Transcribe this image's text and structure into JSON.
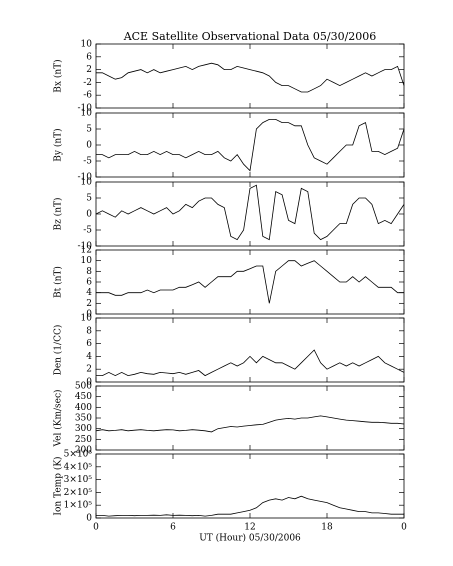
{
  "chart_data": [
    {
      "type": "line",
      "title": "ACE Satellite Observational Data   05/30/2006",
      "ylabel": "Bx (nT)",
      "color": "#000000",
      "x": [
        0,
        0.5,
        1,
        1.5,
        2,
        2.5,
        3,
        3.5,
        4,
        4.5,
        5,
        5.5,
        6,
        6.5,
        7,
        7.5,
        8,
        8.5,
        9,
        9.5,
        10,
        10.5,
        11,
        11.5,
        12,
        12.5,
        13,
        13.5,
        14,
        14.5,
        15,
        15.5,
        16,
        16.5,
        17,
        17.5,
        18,
        18.5,
        19,
        19.5,
        20,
        20.5,
        21,
        21.5,
        22,
        22.5,
        23,
        23.5,
        24
      ],
      "values": [
        1,
        1,
        0,
        -1,
        -0.5,
        1,
        1.5,
        2,
        1,
        2,
        1,
        1.5,
        2,
        2.5,
        3,
        2,
        3,
        3.5,
        4,
        3.5,
        2,
        2,
        3,
        2.5,
        2,
        1.5,
        1,
        0,
        -2,
        -3,
        -3,
        -4,
        -5,
        -5,
        -4,
        -3,
        -1,
        -2,
        -3,
        -2,
        -1,
        0,
        1,
        0,
        1,
        2,
        2,
        3,
        -3
      ],
      "xlim": [
        0,
        24
      ],
      "ylim": [
        -10,
        10
      ],
      "yticks": [
        -10,
        -6,
        -2,
        2,
        6,
        10
      ]
    },
    {
      "type": "line",
      "ylabel": "By (nT)",
      "color": "#000000",
      "x": [
        0,
        0.5,
        1,
        1.5,
        2,
        2.5,
        3,
        3.5,
        4,
        4.5,
        5,
        5.5,
        6,
        6.5,
        7,
        7.5,
        8,
        8.5,
        9,
        9.5,
        10,
        10.5,
        11,
        11.5,
        12,
        12.5,
        13,
        13.5,
        14,
        14.5,
        15,
        15.5,
        16,
        16.5,
        17,
        17.5,
        18,
        18.5,
        19,
        19.5,
        20,
        20.5,
        21,
        21.5,
        22,
        22.5,
        23,
        23.5,
        24
      ],
      "values": [
        -3,
        -3,
        -4,
        -3,
        -3,
        -3,
        -2,
        -3,
        -3,
        -2,
        -3,
        -2,
        -3,
        -3,
        -4,
        -3,
        -2,
        -3,
        -3,
        -2,
        -4,
        -5,
        -3,
        -6,
        -8,
        5,
        7,
        8,
        8,
        7,
        7,
        6,
        6,
        0,
        -4,
        -5,
        -6,
        -4,
        -2,
        0,
        0,
        6,
        7,
        -2,
        -2,
        -3,
        -2,
        -1,
        5
      ],
      "xlim": [
        0,
        24
      ],
      "ylim": [
        -10,
        10
      ],
      "yticks": [
        -10,
        -5,
        0,
        5,
        10
      ]
    },
    {
      "type": "line",
      "ylabel": "Bz (nT)",
      "color": "#000000",
      "x": [
        0,
        0.5,
        1,
        1.5,
        2,
        2.5,
        3,
        3.5,
        4,
        4.5,
        5,
        5.5,
        6,
        6.5,
        7,
        7.5,
        8,
        8.5,
        9,
        9.5,
        10,
        10.5,
        11,
        11.5,
        12,
        12.5,
        13,
        13.5,
        14,
        14.5,
        15,
        15.5,
        16,
        16.5,
        17,
        17.5,
        18,
        18.5,
        19,
        19.5,
        20,
        20.5,
        21,
        21.5,
        22,
        22.5,
        23,
        23.5,
        24
      ],
      "values": [
        0,
        1,
        0,
        -1,
        1,
        0,
        1,
        2,
        1,
        0,
        1,
        2,
        0,
        1,
        3,
        2,
        4,
        5,
        5,
        3,
        2,
        -7,
        -8,
        -5,
        8,
        9,
        -7,
        -8,
        7,
        6,
        -2,
        -3,
        8,
        7,
        -6,
        -8,
        -7,
        -5,
        -3,
        -3,
        3,
        5,
        5,
        3,
        -3,
        -2,
        -3,
        0,
        3
      ],
      "xlim": [
        0,
        24
      ],
      "ylim": [
        -10,
        10
      ],
      "yticks": [
        -10,
        -5,
        0,
        5,
        10
      ]
    },
    {
      "type": "line",
      "ylabel": "Bt (nT)",
      "color": "#000000",
      "x": [
        0,
        0.5,
        1,
        1.5,
        2,
        2.5,
        3,
        3.5,
        4,
        4.5,
        5,
        5.5,
        6,
        6.5,
        7,
        7.5,
        8,
        8.5,
        9,
        9.5,
        10,
        10.5,
        11,
        11.5,
        12,
        12.5,
        13,
        13.5,
        14,
        14.5,
        15,
        15.5,
        16,
        16.5,
        17,
        17.5,
        18,
        18.5,
        19,
        19.5,
        20,
        20.5,
        21,
        21.5,
        22,
        22.5,
        23,
        23.5,
        24
      ],
      "values": [
        4,
        4,
        4,
        3.5,
        3.5,
        4,
        4,
        4,
        4.5,
        4,
        4.5,
        4.5,
        4.5,
        5,
        5,
        5.5,
        6,
        5,
        6,
        7,
        7,
        7,
        8,
        8,
        8.5,
        9,
        9,
        2,
        8,
        9,
        10,
        10,
        9,
        9.5,
        10,
        9,
        8,
        7,
        6,
        6,
        7,
        6,
        7,
        6,
        5,
        5,
        5,
        4,
        4
      ],
      "xlim": [
        0,
        24
      ],
      "ylim": [
        0,
        12
      ],
      "yticks": [
        0,
        2,
        4,
        6,
        8,
        10,
        12
      ]
    },
    {
      "type": "line",
      "ylabel": "Den (1/CC)",
      "color": "#000000",
      "x": [
        0,
        0.5,
        1,
        1.5,
        2,
        2.5,
        3,
        3.5,
        4,
        4.5,
        5,
        5.5,
        6,
        6.5,
        7,
        7.5,
        8,
        8.5,
        9,
        9.5,
        10,
        10.5,
        11,
        11.5,
        12,
        12.5,
        13,
        13.5,
        14,
        14.5,
        15,
        15.5,
        16,
        16.5,
        17,
        17.5,
        18,
        18.5,
        19,
        19.5,
        20,
        20.5,
        21,
        21.5,
        22,
        22.5,
        23,
        23.5,
        24
      ],
      "values": [
        1,
        1,
        1.5,
        1,
        1.5,
        1,
        1.2,
        1.5,
        1.3,
        1.2,
        1.5,
        1.4,
        1.3,
        1.5,
        1.2,
        1.5,
        1.8,
        1,
        1.5,
        2,
        2.5,
        3,
        2.5,
        3,
        4,
        3,
        4,
        3.5,
        3,
        3,
        2.5,
        2,
        3,
        4,
        5,
        3,
        2,
        2.5,
        3,
        2.5,
        3,
        2.5,
        3,
        3.5,
        4,
        3,
        2.5,
        2,
        1.5
      ],
      "xlim": [
        0,
        24
      ],
      "ylim": [
        0,
        10
      ],
      "yticks": [
        0,
        2,
        4,
        6,
        8,
        10
      ]
    },
    {
      "type": "line",
      "ylabel": "Vel (Km/sec)",
      "color": "#000000",
      "x": [
        0,
        0.5,
        1,
        1.5,
        2,
        2.5,
        3,
        3.5,
        4,
        4.5,
        5,
        5.5,
        6,
        6.5,
        7,
        7.5,
        8,
        8.5,
        9,
        9.5,
        10,
        10.5,
        11,
        11.5,
        12,
        12.5,
        13,
        13.5,
        14,
        14.5,
        15,
        15.5,
        16,
        16.5,
        17,
        17.5,
        18,
        18.5,
        19,
        19.5,
        20,
        20.5,
        21,
        21.5,
        22,
        22.5,
        23,
        23.5,
        24
      ],
      "values": [
        290,
        295,
        290,
        292,
        295,
        290,
        293,
        295,
        292,
        290,
        293,
        295,
        294,
        290,
        292,
        295,
        293,
        290,
        285,
        300,
        305,
        310,
        308,
        312,
        315,
        318,
        320,
        330,
        340,
        345,
        348,
        345,
        350,
        350,
        355,
        360,
        355,
        350,
        345,
        340,
        338,
        335,
        332,
        330,
        330,
        328,
        325,
        325,
        322
      ],
      "xlim": [
        0,
        24
      ],
      "ylim": [
        200,
        500
      ],
      "yticks": [
        200,
        250,
        300,
        350,
        400,
        450,
        500
      ]
    },
    {
      "type": "line",
      "ylabel": "Ion Temp (K)",
      "xlabel": "UT (Hour)  05/30/2006",
      "color": "#000000",
      "x": [
        0,
        0.5,
        1,
        1.5,
        2,
        2.5,
        3,
        3.5,
        4,
        4.5,
        5,
        5.5,
        6,
        6.5,
        7,
        7.5,
        8,
        8.5,
        9,
        9.5,
        10,
        10.5,
        11,
        11.5,
        12,
        12.5,
        13,
        13.5,
        14,
        14.5,
        15,
        15.5,
        16,
        16.5,
        17,
        17.5,
        18,
        18.5,
        19,
        19.5,
        20,
        20.5,
        21,
        21.5,
        22,
        22.5,
        23,
        23.5,
        24
      ],
      "values": [
        20000,
        20000,
        15000,
        18000,
        20000,
        20000,
        18000,
        20000,
        20000,
        22000,
        20000,
        25000,
        20000,
        22000,
        20000,
        18000,
        20000,
        15000,
        20000,
        30000,
        30000,
        30000,
        40000,
        50000,
        60000,
        80000,
        120000,
        140000,
        150000,
        140000,
        160000,
        150000,
        170000,
        150000,
        140000,
        130000,
        120000,
        100000,
        80000,
        70000,
        60000,
        50000,
        50000,
        40000,
        40000,
        35000,
        30000,
        30000,
        30000
      ],
      "xlim": [
        0,
        24
      ],
      "ylim": [
        0,
        500000
      ],
      "yticks": [
        0,
        {
          "value": 100000,
          "label": "1×10⁵"
        },
        {
          "value": 200000,
          "label": "2×10⁵"
        },
        {
          "value": 300000,
          "label": "3×10⁵"
        },
        {
          "value": 400000,
          "label": "4×10⁵"
        },
        {
          "value": 500000,
          "label": "5×10⁵"
        }
      ],
      "xticks": [
        0,
        6,
        12,
        18,
        {
          "value": 24,
          "label": "0"
        }
      ]
    }
  ]
}
